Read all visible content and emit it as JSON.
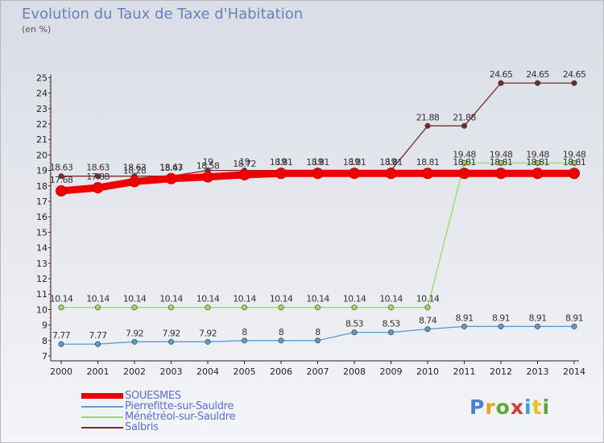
{
  "chart_data": {
    "type": "line",
    "title": "Evolution du Taux de Taxe d'Habitation",
    "unit_label": "(en %)",
    "x": [
      "2000",
      "2001",
      "2002",
      "2003",
      "2004",
      "2005",
      "2006",
      "2007",
      "2008",
      "2009",
      "2010",
      "2011",
      "2012",
      "2013",
      "2014"
    ],
    "y_ticks": [
      "7",
      "8",
      "9",
      "10",
      "11",
      "12",
      "13",
      "14",
      "15",
      "16",
      "17",
      "18",
      "19",
      "20",
      "21",
      "22",
      "23",
      "24",
      "25"
    ],
    "ylim": [
      7,
      25
    ],
    "grid": false,
    "legend_position": "bottom-left",
    "series": [
      {
        "name": "SOUESMES",
        "color": "#ee0000",
        "values": [
          17.68,
          17.88,
          18.28,
          18.47,
          18.58,
          18.72,
          18.81,
          18.81,
          18.81,
          18.81,
          18.81,
          18.81,
          18.81,
          18.81,
          18.81
        ],
        "labels": [
          "17.68",
          "17.88",
          "18.28",
          "18.47",
          "18.58",
          "18.72",
          "18.81",
          "18.81",
          "18.81",
          "18.81",
          "18.81",
          "18.81",
          "18.81",
          "18.81",
          "18.81"
        ]
      },
      {
        "name": "Pierrefitte-sur-Sauldre",
        "color": "#5a9bd0",
        "values": [
          7.77,
          7.77,
          7.92,
          7.92,
          7.92,
          8,
          8,
          8,
          8.53,
          8.53,
          8.74,
          8.91,
          8.91,
          8.91,
          8.91
        ],
        "labels": [
          "7.77",
          "7.77",
          "7.92",
          "7.92",
          "7.92",
          "8",
          "8",
          "8",
          "8.53",
          "8.53",
          "8.74",
          "8.91",
          "8.91",
          "8.91",
          "8.91"
        ]
      },
      {
        "name": "Ménétréol-sur-Sauldre",
        "color": "#99dd55",
        "values": [
          10.14,
          10.14,
          10.14,
          10.14,
          10.14,
          10.14,
          10.14,
          10.14,
          10.14,
          10.14,
          10.14,
          19.48,
          19.48,
          19.48,
          19.48
        ],
        "labels": [
          "10.14",
          "10.14",
          "10.14",
          "10.14",
          "10.14",
          "10.14",
          "10.14",
          "10.14",
          "10.14",
          "10.14",
          "10.14",
          "19.48",
          "19.48",
          "19.48",
          "19.48"
        ]
      },
      {
        "name": "Salbris",
        "color": "#7a2a2a",
        "values": [
          18.63,
          18.63,
          18.63,
          18.63,
          19,
          19,
          19,
          19,
          19,
          19,
          21.88,
          21.88,
          24.65,
          24.65,
          24.65
        ],
        "labels": [
          "18.63",
          "18.63",
          "18.63",
          "18.63",
          "19",
          "19",
          "19",
          "19",
          "19",
          "19",
          "21.88",
          "21.88",
          "24.65",
          "24.65",
          "24.65"
        ]
      }
    ]
  },
  "brand": {
    "text": "Proxiti"
  }
}
